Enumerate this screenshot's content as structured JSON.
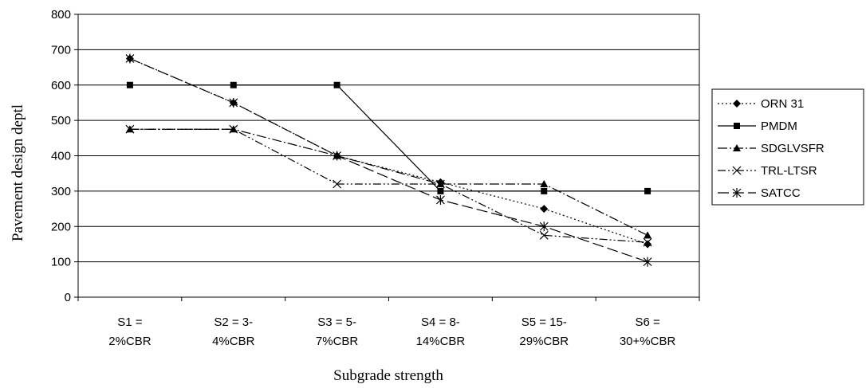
{
  "chart_data": {
    "type": "line",
    "title": "",
    "ylabel": "Pavement design deptl",
    "xlabel": "Subgrade strength",
    "ylim": [
      0,
      800
    ],
    "yticks": [
      "0",
      "100",
      "200",
      "300",
      "400",
      "500",
      "600",
      "700",
      "800"
    ],
    "grid": true,
    "legend_position": "right",
    "categories": [
      [
        "S1 =",
        "2%CBR"
      ],
      [
        "S2 = 3-",
        "4%CBR"
      ],
      [
        "S3 = 5-",
        "7%CBR"
      ],
      [
        "S4 = 8-",
        "14%CBR"
      ],
      [
        "S5 = 15-",
        "29%CBR"
      ],
      [
        "S6 =",
        "30+%CBR"
      ]
    ],
    "series": [
      {
        "name": "ORN 31",
        "marker": "diamond",
        "dash": "2,3",
        "values": [
          675,
          550,
          400,
          325,
          250,
          150
        ]
      },
      {
        "name": "PMDM",
        "marker": "square",
        "dash": "",
        "values": [
          600,
          600,
          600,
          300,
          300,
          300
        ]
      },
      {
        "name": "SDGLVSFR",
        "marker": "triangle",
        "dash": "12,3,2,3",
        "values": [
          475,
          475,
          400,
          320,
          320,
          175
        ]
      },
      {
        "name": "TRL-LTSR",
        "marker": "x",
        "dash": "10,3,2,3,2,3",
        "values": [
          475,
          475,
          320,
          320,
          175,
          155
        ]
      },
      {
        "name": "SATCC",
        "marker": "star",
        "dash": "14,5",
        "values": [
          675,
          550,
          400,
          275,
          200,
          100
        ]
      }
    ]
  }
}
